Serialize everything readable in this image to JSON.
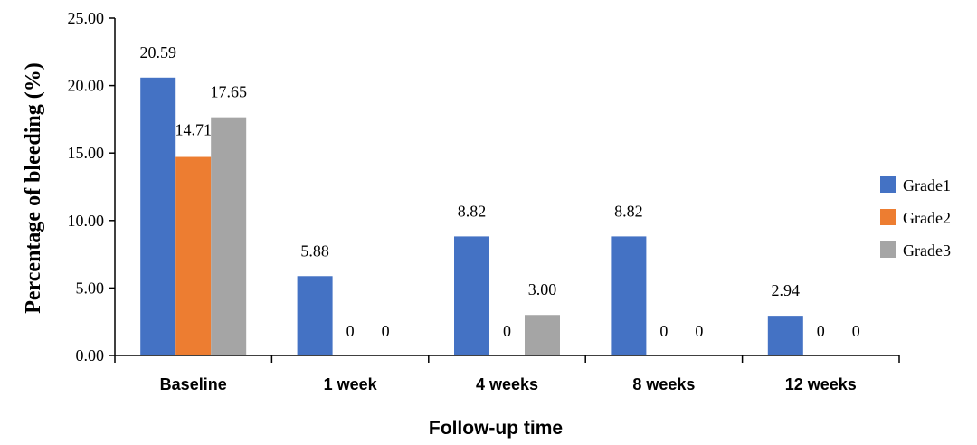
{
  "chart_data": {
    "type": "bar",
    "title": "",
    "xlabel": "Follow-up time",
    "ylabel": "Percentage of bleeding (%)",
    "ylim": [
      0,
      25
    ],
    "yticks": [
      "0.00",
      "5.00",
      "10.00",
      "15.00",
      "20.00",
      "25.00"
    ],
    "grid": false,
    "legend_position": "right",
    "categories": [
      "Baseline",
      "1 week",
      "4 weeks",
      "8 weeks",
      "12 weeks"
    ],
    "series": [
      {
        "name": "Grade1",
        "color": "#4472c4",
        "values": [
          20.59,
          5.88,
          8.82,
          8.82,
          2.94
        ],
        "labels": [
          "20.59",
          "5.88",
          "8.82",
          "8.82",
          "2.94"
        ]
      },
      {
        "name": "Grade2",
        "color": "#ed7d31",
        "values": [
          14.71,
          0,
          0,
          0,
          0
        ],
        "labels": [
          "14.71",
          "0",
          "0",
          "0",
          "0"
        ]
      },
      {
        "name": "Grade3",
        "color": "#a5a5a5",
        "values": [
          17.65,
          0,
          3.0,
          0,
          0
        ],
        "labels": [
          "17.65",
          "0",
          "3.00",
          "0",
          "0"
        ]
      }
    ]
  }
}
